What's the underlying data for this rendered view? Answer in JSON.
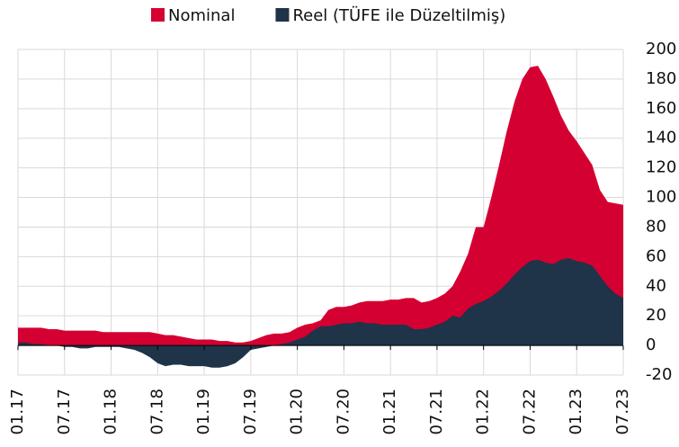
{
  "chart_data": {
    "type": "area",
    "categories": [
      "01.17",
      null,
      null,
      null,
      null,
      null,
      "07.17",
      null,
      null,
      null,
      null,
      null,
      "01.18",
      null,
      null,
      null,
      null,
      null,
      "07.18",
      null,
      null,
      null,
      null,
      null,
      "01.19",
      null,
      null,
      null,
      null,
      null,
      "07.19",
      null,
      null,
      null,
      null,
      null,
      "01.20",
      null,
      null,
      null,
      null,
      null,
      "07.20",
      null,
      null,
      null,
      null,
      null,
      "01.21",
      null,
      null,
      null,
      null,
      null,
      "07.21",
      null,
      null,
      null,
      null,
      null,
      "01.22",
      null,
      null,
      null,
      null,
      null,
      "07.22",
      null,
      null,
      null,
      null,
      null,
      "01.23",
      null,
      null,
      null,
      null,
      null,
      "07.23"
    ],
    "series": [
      {
        "name": "Nominal",
        "color": "#d50032",
        "values": [
          12,
          12,
          12,
          12,
          11,
          11,
          10,
          10,
          10,
          10,
          10,
          9,
          9,
          9,
          9,
          9,
          9,
          9,
          8,
          7,
          7,
          6,
          5,
          4,
          4,
          4,
          3,
          3,
          2,
          2,
          3,
          5,
          7,
          8,
          8,
          9,
          12,
          14,
          15,
          17,
          24,
          26,
          26,
          27,
          29,
          30,
          30,
          30,
          31,
          31,
          32,
          32,
          29,
          30,
          32,
          35,
          40,
          50,
          62,
          80,
          80,
          100,
          122,
          145,
          165,
          180,
          188,
          189,
          180,
          168,
          155,
          145,
          138,
          130,
          122,
          105,
          97,
          96,
          95
        ]
      },
      {
        "name": "Reel (TÜFE ile Düzeltilmiş)",
        "color": "#1f3349",
        "values": [
          2,
          2,
          1,
          1,
          0,
          0,
          -1,
          -1,
          -2,
          -2,
          -1,
          -1,
          -1,
          -1,
          -2,
          -3,
          -5,
          -8,
          -12,
          -14,
          -13,
          -13,
          -14,
          -14,
          -14,
          -15,
          -15,
          -14,
          -12,
          -8,
          -3,
          -2,
          -1,
          0,
          1,
          2,
          4,
          6,
          10,
          13,
          13,
          14,
          15,
          15,
          16,
          15,
          15,
          14,
          14,
          14,
          14,
          11,
          11,
          12,
          14,
          16,
          20,
          19,
          25,
          28,
          30,
          33,
          37,
          42,
          48,
          53,
          57,
          58,
          56,
          55,
          58,
          59,
          57,
          56,
          54,
          47,
          40,
          35,
          32
        ]
      }
    ],
    "ylim": [
      -20,
      200
    ],
    "yticks": [
      -20,
      0,
      20,
      40,
      60,
      80,
      100,
      120,
      140,
      160,
      180,
      200
    ],
    "grid": true,
    "legend": "top"
  }
}
